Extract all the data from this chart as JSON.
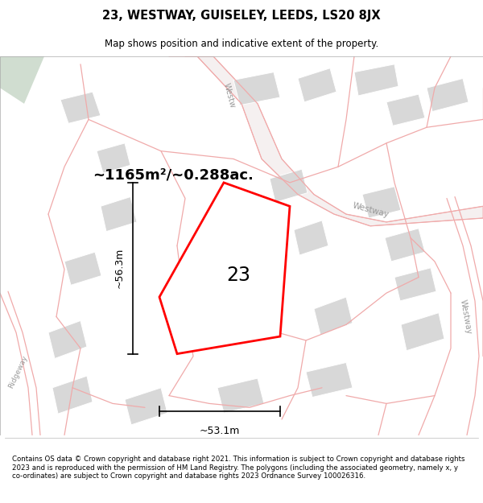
{
  "title": "23, WESTWAY, GUISELEY, LEEDS, LS20 8JX",
  "subtitle": "Map shows position and indicative extent of the property.",
  "area_text": "~1165m²/~0.288ac.",
  "width_text": "~53.1m",
  "height_text": "~56.3m",
  "number_label": "23",
  "footer_text": "Contains OS data © Crown copyright and database right 2021. This information is subject to Crown copyright and database rights 2023 and is reproduced with the permission of HM Land Registry. The polygons (including the associated geometry, namely x, y co-ordinates) are subject to Crown copyright and database rights 2023 Ordnance Survey 100026316.",
  "map_bg": "#ffffff",
  "red_poly_color": "#ff0000",
  "pink_line_color": "#f0aaaa",
  "gray_fill": "#d8d8d8",
  "green_fill": "#d0ddd0",
  "road_gray": "#d0d0d0"
}
